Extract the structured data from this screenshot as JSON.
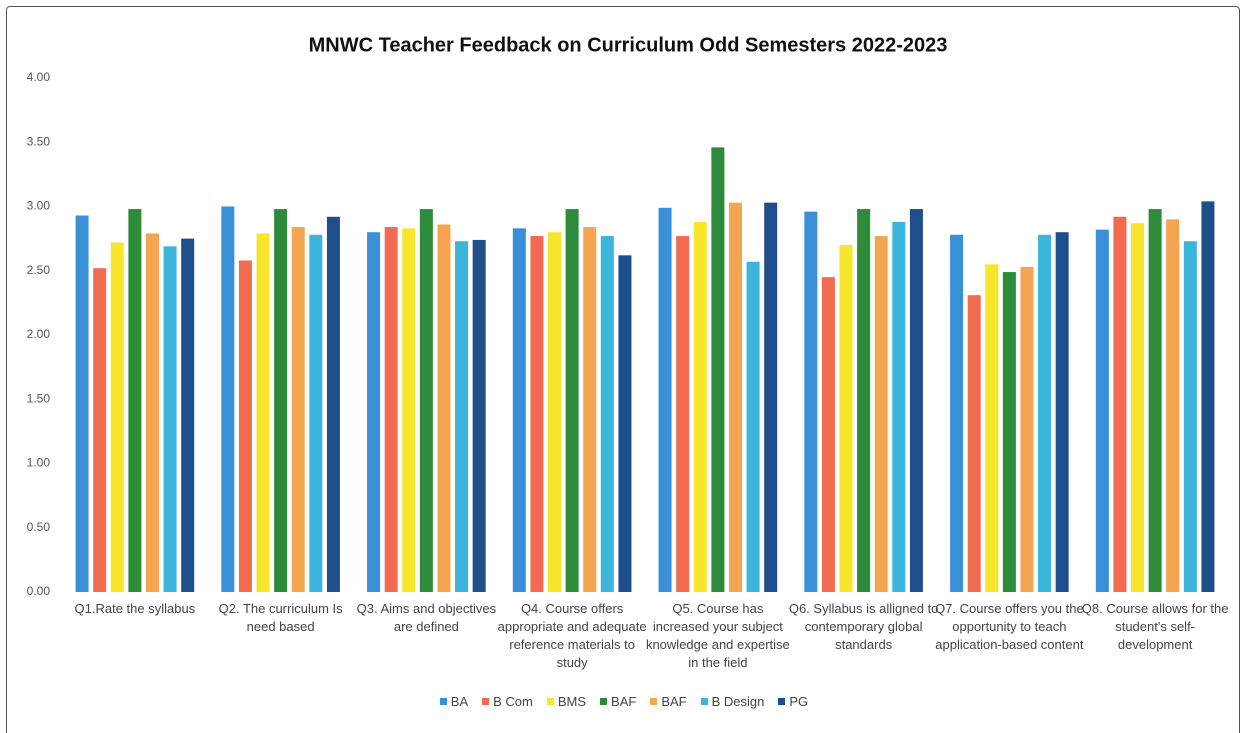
{
  "chart_data": {
    "type": "bar",
    "title": "MNWC Teacher Feedback on Curriculum Odd Semesters 2022-2023",
    "categories": [
      "Q1.Rate the syllabus",
      "Q2. The curriculum Is need based",
      "Q3. Aims and objectives are defined",
      "Q4. Course offers appropriate and adequate reference materials to study",
      "Q5. Course has increased your subject knowledge and expertise in the field",
      "Q6. Syllabus is alligned to contemporary global standards",
      "Q7. Course offers you the opportunity to teach application-based content",
      "Q8. Course allows for the student's self-development"
    ],
    "series": [
      {
        "name": "BA",
        "color": "#3a8fd9",
        "values": [
          2.93,
          3.0,
          2.8,
          2.83,
          2.99,
          2.96,
          2.78,
          2.82
        ]
      },
      {
        "name": "B Com",
        "color": "#f26b50",
        "values": [
          2.52,
          2.58,
          2.84,
          2.77,
          2.77,
          2.45,
          2.31,
          2.92
        ]
      },
      {
        "name": "BMS",
        "color": "#f7e62a",
        "values": [
          2.72,
          2.79,
          2.83,
          2.8,
          2.88,
          2.7,
          2.55,
          2.87
        ]
      },
      {
        "name": "BAF",
        "color": "#2e8b3a",
        "values": [
          2.98,
          2.98,
          2.98,
          2.98,
          3.46,
          2.98,
          2.49,
          2.98
        ]
      },
      {
        "name": "BAF",
        "color": "#f5a450",
        "values": [
          2.79,
          2.84,
          2.86,
          2.84,
          3.03,
          2.77,
          2.53,
          2.9
        ]
      },
      {
        "name": "B Design",
        "color": "#3bb5dc",
        "values": [
          2.69,
          2.78,
          2.73,
          2.77,
          2.57,
          2.88,
          2.78,
          2.73
        ]
      },
      {
        "name": "PG",
        "color": "#1f4e8c",
        "values": [
          2.75,
          2.92,
          2.74,
          2.62,
          3.03,
          2.98,
          2.8,
          3.04
        ]
      }
    ],
    "ylim": [
      0,
      4
    ],
    "yticks": [
      {
        "value": 0,
        "label": "0.00"
      },
      {
        "value": 0.5,
        "label": "0.50"
      },
      {
        "value": 1,
        "label": "1.00"
      },
      {
        "value": 1.5,
        "label": "1.50"
      },
      {
        "value": 2,
        "label": "2.00"
      },
      {
        "value": 2.5,
        "label": "2.50"
      },
      {
        "value": 3,
        "label": "3.00"
      },
      {
        "value": 3.5,
        "label": "3.50"
      },
      {
        "value": 4,
        "label": "4.00"
      }
    ],
    "grid": false,
    "legend": "bottom"
  }
}
